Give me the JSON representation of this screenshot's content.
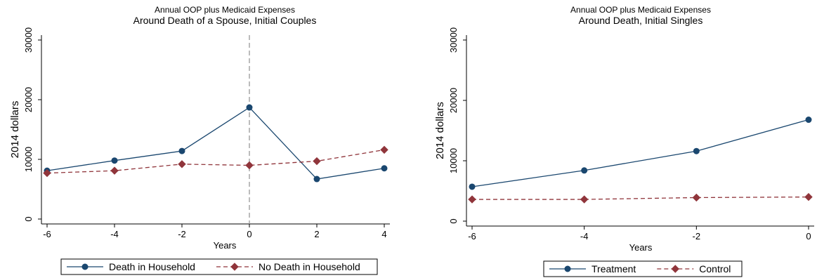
{
  "chart_data": [
    {
      "type": "line",
      "title": "Annual OOP plus Medicaid Expenses",
      "subtitle": "Around Death of a Spouse, Initial Couples",
      "xlabel": "Years",
      "ylabel": "2014 dollars",
      "xlim": [
        -6,
        4
      ],
      "ylim": [
        0,
        30000
      ],
      "xticks": [
        "-6",
        "-4",
        "-2",
        "0",
        "2",
        "4"
      ],
      "yticks": [
        "0",
        "10000",
        "20000",
        "30000"
      ],
      "grid": false,
      "vline_x": 0,
      "legend_position": "bottom",
      "x": [
        -6,
        -4,
        -2,
        0,
        2,
        4
      ],
      "series": [
        {
          "name": "Death in Household",
          "color": "#1a476f",
          "style": "solid",
          "marker": "circle",
          "values": [
            8100,
            9800,
            11400,
            18700,
            6700,
            8500
          ]
        },
        {
          "name": "No Death in Household",
          "color": "#90353b",
          "style": "dashed",
          "marker": "diamond",
          "values": [
            7700,
            8100,
            9200,
            9000,
            9700,
            11600
          ]
        }
      ]
    },
    {
      "type": "line",
      "title": "Annual OOP plus Medicaid Expenses",
      "subtitle": "Around Death, Initial Singles",
      "xlabel": "Years",
      "ylabel": "2014 dollars",
      "xlim": [
        -6,
        0
      ],
      "ylim": [
        0,
        30000
      ],
      "xticks": [
        "-6",
        "-4",
        "-2",
        "0"
      ],
      "yticks": [
        "0",
        "10000",
        "20000",
        "30000"
      ],
      "grid": false,
      "legend_position": "bottom",
      "x": [
        -6,
        -4,
        -2,
        0
      ],
      "series": [
        {
          "name": "Treatment",
          "color": "#1a476f",
          "style": "solid",
          "marker": "circle",
          "values": [
            5700,
            8400,
            11600,
            16800
          ]
        },
        {
          "name": "Control",
          "color": "#90353b",
          "style": "dashed",
          "marker": "diamond",
          "values": [
            3600,
            3600,
            3900,
            4000
          ]
        }
      ]
    }
  ]
}
